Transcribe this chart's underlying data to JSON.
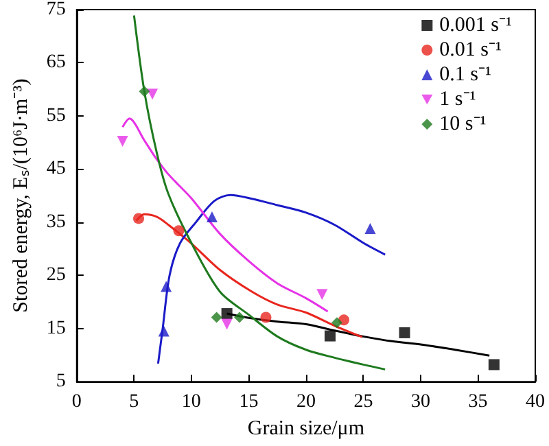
{
  "chart_data": {
    "type": "scatter",
    "xlabel": "Grain size/μm",
    "ylabel": "Stored energy, Eₛ/(10⁶J·m⁻³)",
    "xlim": [
      0,
      40
    ],
    "xticks": [
      0,
      5,
      10,
      15,
      20,
      25,
      30,
      35,
      40
    ],
    "ylim": [
      5,
      75
    ],
    "yticks": [
      5,
      15,
      25,
      35,
      45,
      55,
      65,
      75
    ],
    "legend": "top right",
    "grid": false,
    "series": [
      {
        "name": "0.001 s⁻¹",
        "marker": "square",
        "color": "#000000",
        "x": [
          13.1,
          22.1,
          28.6,
          36.4
        ],
        "values": [
          17.8,
          13.6,
          14.2,
          8.2
        ]
      },
      {
        "name": "0.01 s⁻¹",
        "marker": "circle",
        "color": "#e8261e",
        "x": [
          5.4,
          8.9,
          16.5,
          23.3
        ],
        "values": [
          35.7,
          33.4,
          17.1,
          16.6
        ]
      },
      {
        "name": "0.1 s⁻¹",
        "marker": "triangle",
        "color": "#1a1ac8",
        "x": [
          7.6,
          7.8,
          11.8,
          25.6
        ],
        "values": [
          14.5,
          22.9,
          36.0,
          33.8
        ]
      },
      {
        "name": "1 s⁻¹",
        "marker": "triangle-down",
        "color": "#e632e6",
        "x": [
          4.0,
          6.6,
          13.1,
          21.4
        ],
        "values": [
          50.2,
          59.1,
          15.8,
          21.4
        ]
      },
      {
        "name": "10 s⁻¹",
        "marker": "diamond",
        "color": "#1e7a1e",
        "x": [
          5.9,
          12.2,
          14.2,
          22.7
        ],
        "values": [
          59.6,
          17.1,
          17.1,
          16.1
        ]
      },
      {
        "type": "line",
        "marker": "none",
        "color": "#000000",
        "x": [
          13.1,
          15,
          17.5,
          20,
          22.5,
          25,
          27.5,
          30,
          33,
          36
        ],
        "values": [
          17.8,
          17.0,
          16.3,
          15.8,
          14.6,
          13.5,
          12.6,
          12.0,
          11.0,
          9.9
        ]
      },
      {
        "type": "line",
        "marker": "none",
        "color": "#e8261e",
        "x": [
          5.2,
          5.9,
          7,
          8,
          10,
          12.5,
          15.3,
          17.5,
          20,
          22.5,
          24.9
        ],
        "values": [
          35.3,
          36.5,
          36,
          34.5,
          31,
          26,
          21.9,
          19.5,
          18,
          15.5,
          13.4
        ]
      },
      {
        "type": "line",
        "marker": "none",
        "color": "#1a1ac8",
        "x": [
          7.1,
          7.5,
          8.1,
          9,
          10.4,
          12,
          13.4,
          15.3,
          17.5,
          20,
          22.5,
          25,
          26.9
        ],
        "values": [
          8.4,
          15,
          25,
          31,
          35,
          39,
          40.1,
          39.4,
          38.2,
          36.8,
          34.5,
          31.1,
          28.9
        ]
      },
      {
        "type": "line",
        "marker": "none",
        "color": "#e632e6",
        "x": [
          4.0,
          4.6,
          5.9,
          6.8,
          8,
          10,
          12.5,
          15,
          17.5,
          20,
          21.9
        ],
        "values": [
          52.9,
          54.5,
          50.4,
          47.4,
          44,
          39.5,
          32.8,
          27.7,
          23.5,
          20.7,
          18.2
        ]
      },
      {
        "type": "line",
        "marker": "none",
        "color": "#1e7a1e",
        "x": [
          5.0,
          5.9,
          7,
          8,
          10,
          12.5,
          15,
          17.5,
          20,
          22.5,
          25,
          26.9
        ],
        "values": [
          73.9,
          59.6,
          47.9,
          40.3,
          31.1,
          21.9,
          17.6,
          13.5,
          11,
          9.5,
          8.2,
          7.3
        ]
      }
    ]
  }
}
